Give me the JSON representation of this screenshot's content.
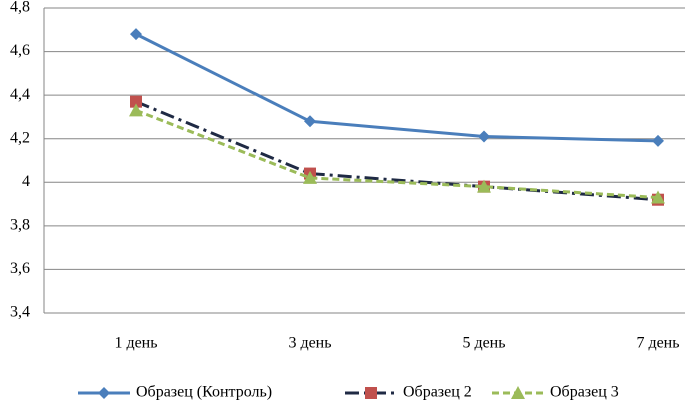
{
  "chart_data": {
    "type": "line",
    "categories": [
      "1 день",
      "3 день",
      "5 день",
      "7 день"
    ],
    "series": [
      {
        "name": "Образец (Контроль)",
        "color": "#4a7ebb",
        "marker_color": "#4a7ebb",
        "marker": "diamond",
        "dash": "solid",
        "values": [
          4.68,
          4.28,
          4.21,
          4.19
        ]
      },
      {
        "name": "Образец 2",
        "color": "#1f2a44",
        "marker_color": "#c0504d",
        "marker": "square",
        "dash": "dashdot",
        "values": [
          4.37,
          4.04,
          3.98,
          3.92
        ]
      },
      {
        "name": "Образец 3",
        "color": "#9bbb59",
        "marker_color": "#9bbb59",
        "marker": "triangle",
        "dash": "dashed",
        "values": [
          4.33,
          4.02,
          3.98,
          3.93
        ]
      }
    ],
    "ylim": [
      3.4,
      4.8
    ],
    "yticks": [
      {
        "value": 3.4,
        "label": "3,4"
      },
      {
        "value": 3.6,
        "label": "3,6"
      },
      {
        "value": 3.8,
        "label": "3,8"
      },
      4,
      {
        "value": 4.2,
        "label": "4,2"
      },
      {
        "value": 4.4,
        "label": "4,4"
      },
      {
        "value": 4.6,
        "label": "4,6"
      },
      {
        "value": 4.8,
        "label": "4,8"
      }
    ],
    "grid": true,
    "legend": "bottom"
  }
}
